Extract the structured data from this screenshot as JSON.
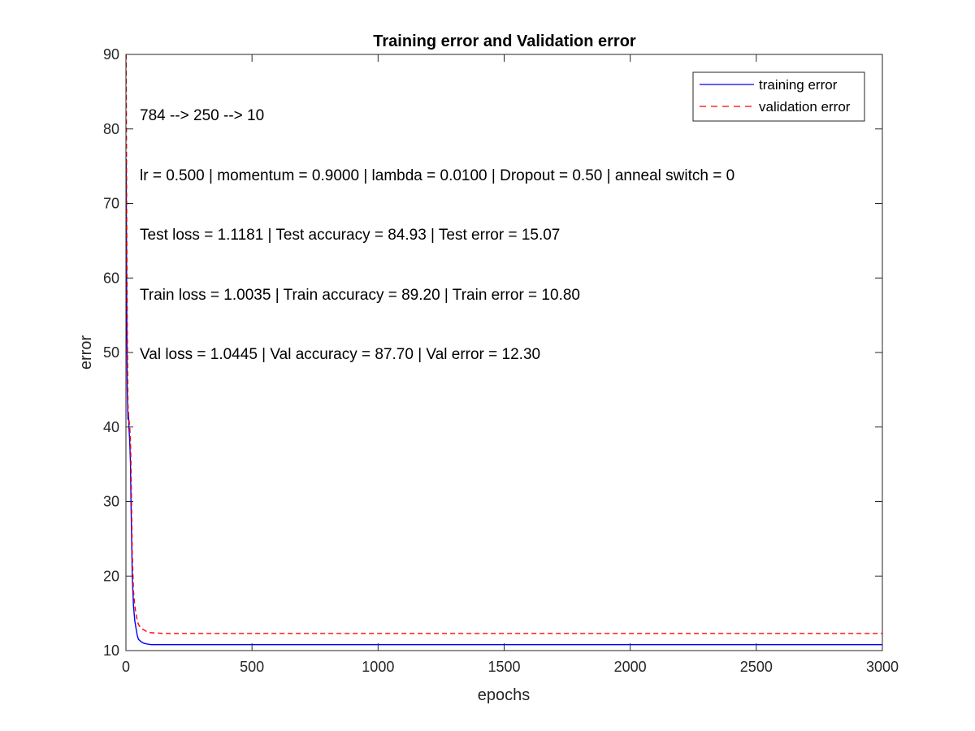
{
  "chart_data": {
    "type": "line",
    "title": "Training error and Validation error",
    "xlabel": "epochs",
    "ylabel": "error",
    "xlim": [
      0,
      3000
    ],
    "ylim": [
      10,
      90
    ],
    "xticks": [
      0,
      500,
      1000,
      1500,
      2000,
      2500,
      3000
    ],
    "yticks": [
      10,
      20,
      30,
      40,
      50,
      60,
      70,
      80,
      90
    ],
    "grid": false,
    "legend_position": "top-right",
    "series": [
      {
        "name": "training error",
        "color": "#0000ff",
        "style": "solid",
        "x": [
          1,
          3,
          5,
          8,
          10,
          12,
          15,
          18,
          20,
          25,
          30,
          35,
          40,
          45,
          50,
          60,
          70,
          80,
          100,
          150,
          200,
          300,
          500,
          1000,
          1500,
          2000,
          2500,
          3000
        ],
        "values": [
          76,
          58,
          45,
          41,
          42,
          40,
          38,
          35,
          30,
          20,
          16,
          14,
          13,
          12,
          11.5,
          11.2,
          11.0,
          10.9,
          10.8,
          10.8,
          10.8,
          10.8,
          10.8,
          10.8,
          10.8,
          10.8,
          10.8,
          10.8
        ]
      },
      {
        "name": "validation error",
        "color": "#ff0000",
        "style": "dashed",
        "x": [
          1,
          3,
          5,
          8,
          10,
          12,
          15,
          18,
          20,
          25,
          30,
          35,
          40,
          45,
          50,
          60,
          70,
          80,
          100,
          150,
          200,
          300,
          500,
          1000,
          1500,
          2000,
          2500,
          3000
        ],
        "values": [
          90,
          70,
          55,
          43,
          42,
          41,
          40,
          38,
          35,
          23,
          18,
          16,
          15,
          14,
          13.5,
          13,
          12.8,
          12.6,
          12.4,
          12.3,
          12.3,
          12.3,
          12.3,
          12.3,
          12.3,
          12.3,
          12.3,
          12.3
        ]
      }
    ],
    "annotations": [
      "784 --> 250 --> 10",
      "lr = 0.500 | momentum = 0.9000 | lambda = 0.0100 | Dropout = 0.50 | anneal switch = 0",
      "Test loss = 1.1181 | Test accuracy = 84.93 | Test error = 15.07",
      "Train loss = 1.0035 | Train accuracy = 89.20 | Train error = 10.80",
      "Val loss = 1.0445 | Val accuracy = 87.70 | Val error = 12.30"
    ]
  }
}
